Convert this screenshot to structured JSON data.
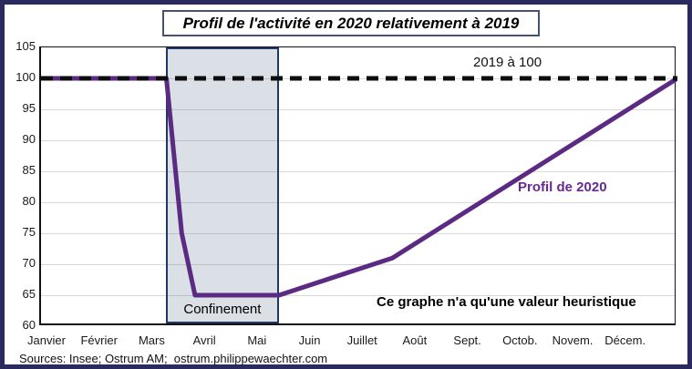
{
  "title": "Profil de l'activité en 2020 relativement à 2019",
  "footer": {
    "sources": "Sources: Insee; Ostrum AM;  ostrum.philippewaechter.com"
  },
  "colors": {
    "outer_border": "#2A2A5E",
    "title_border": "#44546A",
    "profile_line": "#5B2A82",
    "reference_line": "#0D0D0D",
    "region_fill": "#DBDFE6",
    "region_border": "#1F3864",
    "gridline": "#D9D9D9",
    "series_label_text": "#66298F"
  },
  "chart_data": {
    "type": "line",
    "title": "Profil de l'activité en 2020 relativement à 2019",
    "xlabel": "",
    "ylabel": "",
    "ylim": [
      60,
      105
    ],
    "y_ticks": [
      105,
      100,
      95,
      90,
      85,
      80,
      75,
      70,
      65,
      60
    ],
    "grid": "horizontal",
    "legend_position": "none",
    "x_categories": [
      "Janvier",
      "Février",
      "Mars",
      "Avril",
      "Mai",
      "Juin",
      "Juillet",
      "Août",
      "Sept.",
      "Octob.",
      "Novem.",
      "Décem."
    ],
    "reference_series": {
      "name": "2019 à 100",
      "value": 100,
      "style": "dashed",
      "color": "#0D0D0D"
    },
    "series": [
      {
        "name": "Profil de 2020",
        "color": "#5B2A82",
        "points": [
          {
            "fx": 0.0,
            "value": 100
          },
          {
            "fx": 0.197,
            "value": 100
          },
          {
            "fx": 0.221,
            "value": 75
          },
          {
            "fx": 0.242,
            "value": 65
          },
          {
            "fx": 0.374,
            "value": 65
          },
          {
            "fx": 0.552,
            "value": 71
          },
          {
            "fx": 1.0,
            "value": 100
          }
        ],
        "monthly_estimates": [
          100,
          100,
          100,
          65,
          65,
          67,
          70,
          73.5,
          79,
          84,
          89.5,
          95
        ]
      }
    ],
    "shaded_region": {
      "label": "Confinement",
      "from_fx": 0.196,
      "to_fx": 0.374
    },
    "annotations": {
      "reference_label": "2019 à 100",
      "series_label": "Profil de 2020",
      "heuristic_note": "Ce graphe n'a qu'une valeur heuristique",
      "region_label": "Confinement"
    }
  }
}
